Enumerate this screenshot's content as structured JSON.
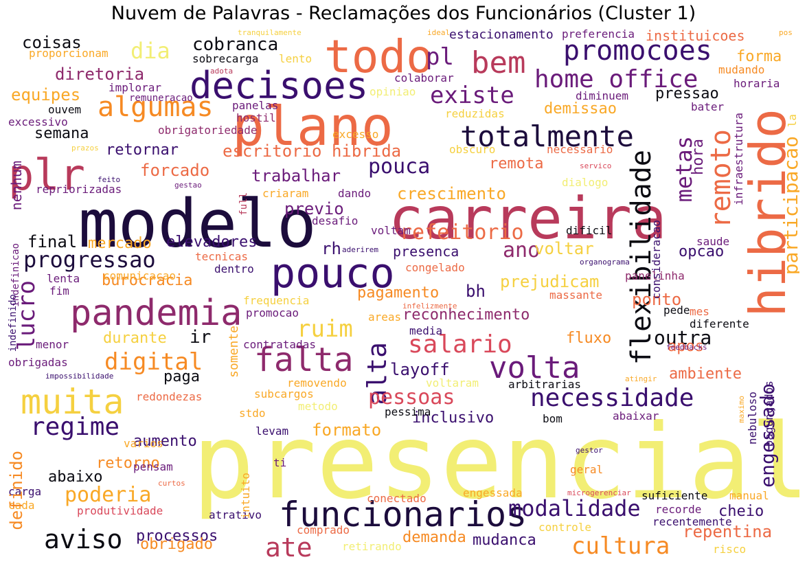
{
  "title": "Nuvem de Palavras - Reclamações dos Funcionários (Cluster 1)",
  "palette": {
    "dark": "#1c0c3c",
    "indigo": "#3a0f6e",
    "purple": "#6a1b7a",
    "plum": "#8e2a6c",
    "rose": "#b83a5b",
    "red": "#d9485a",
    "coral": "#ec6a45",
    "orange": "#f68a23",
    "amber": "#f9a826",
    "gold": "#f5d040",
    "yellow": "#f2ee74",
    "black": "#0b0b12"
  },
  "words": [
    {
      "t": "presencial",
      "c": "yellow"
    },
    {
      "t": "modelo",
      "c": "dark"
    },
    {
      "t": "carreira",
      "c": "rose"
    },
    {
      "t": "plano",
      "c": "coral"
    },
    {
      "t": "hibrido",
      "c": "coral"
    },
    {
      "t": "todo",
      "c": "coral"
    },
    {
      "t": "plr",
      "c": "rose"
    },
    {
      "t": "pouco",
      "c": "indigo"
    },
    {
      "t": "decisoes",
      "c": "indigo"
    },
    {
      "t": "pandemia",
      "c": "plum"
    },
    {
      "t": "funcionarios",
      "c": "dark"
    },
    {
      "t": "muita",
      "c": "gold"
    },
    {
      "t": "totalmente",
      "c": "dark"
    },
    {
      "t": "flexibilidade",
      "c": "black"
    },
    {
      "t": "bem",
      "c": "rose"
    },
    {
      "t": "promocoes",
      "c": "indigo"
    },
    {
      "t": "home office",
      "c": "purple"
    },
    {
      "t": "necessidade",
      "c": "indigo"
    },
    {
      "t": "falta",
      "c": "plum"
    },
    {
      "t": "volta",
      "c": "purple"
    },
    {
      "t": "algumas",
      "c": "orange"
    },
    {
      "t": "existe",
      "c": "purple"
    },
    {
      "t": "salario",
      "c": "red"
    },
    {
      "t": "cultura",
      "c": "orange"
    },
    {
      "t": "regime",
      "c": "indigo"
    },
    {
      "t": "aviso",
      "c": "black"
    },
    {
      "t": "modalidade",
      "c": "indigo"
    },
    {
      "t": "remoto",
      "c": "coral"
    },
    {
      "t": "progressao",
      "c": "dark"
    },
    {
      "t": "ate",
      "c": "rose"
    },
    {
      "t": "ruim",
      "c": "gold"
    },
    {
      "t": "digital",
      "c": "orange"
    },
    {
      "t": "alta",
      "c": "indigo"
    },
    {
      "t": "lucro",
      "c": "purple"
    },
    {
      "t": "pl",
      "c": "purple"
    },
    {
      "t": "metas",
      "c": "purple"
    },
    {
      "t": "participacao",
      "c": "amber"
    },
    {
      "t": "poderia",
      "c": "amber"
    },
    {
      "t": "outra",
      "c": "black"
    },
    {
      "t": "pessoas",
      "c": "red"
    },
    {
      "t": "refeitorio",
      "c": "coral"
    },
    {
      "t": "pouca",
      "c": "indigo"
    },
    {
      "t": "ano",
      "c": "plum"
    },
    {
      "t": "engessado",
      "c": "indigo"
    },
    {
      "t": "cobranca",
      "c": "black"
    },
    {
      "t": "coisas",
      "c": "black"
    },
    {
      "t": "dia",
      "c": "yellow"
    },
    {
      "t": "diretoria",
      "c": "plum"
    },
    {
      "t": "equipes",
      "c": "amber"
    },
    {
      "t": "semana",
      "c": "black"
    },
    {
      "t": "retornar",
      "c": "indigo"
    },
    {
      "t": "escritorio hibrida",
      "c": "coral"
    },
    {
      "t": "trabalhar",
      "c": "purple"
    },
    {
      "t": "forcado",
      "c": "coral"
    },
    {
      "t": "crescimento",
      "c": "amber"
    },
    {
      "t": "remota",
      "c": "coral"
    },
    {
      "t": "hora",
      "c": "purple"
    },
    {
      "t": "final",
      "c": "black"
    },
    {
      "t": "mercado",
      "c": "amber"
    },
    {
      "t": "elevadores",
      "c": "indigo"
    },
    {
      "t": "previo",
      "c": "purple"
    },
    {
      "t": "rh",
      "c": "indigo"
    },
    {
      "t": "presenca",
      "c": "indigo"
    },
    {
      "t": "voltar",
      "c": "gold"
    },
    {
      "t": "opcao",
      "c": "indigo"
    },
    {
      "t": "burocracia",
      "c": "orange"
    },
    {
      "t": "prejudicam",
      "c": "gold"
    },
    {
      "t": "pagamento",
      "c": "orange"
    },
    {
      "t": "bh",
      "c": "indigo"
    },
    {
      "t": "ponto",
      "c": "coral"
    },
    {
      "t": "reconhecimento",
      "c": "plum"
    },
    {
      "t": "ir",
      "c": "black"
    },
    {
      "t": "durante",
      "c": "gold"
    },
    {
      "t": "fluxo",
      "c": "orange"
    },
    {
      "t": "apos",
      "c": "coral"
    },
    {
      "t": "layoff",
      "c": "indigo"
    },
    {
      "t": "paga",
      "c": "black"
    },
    {
      "t": "ambiente",
      "c": "coral"
    },
    {
      "t": "formato",
      "c": "amber"
    },
    {
      "t": "aumento",
      "c": "indigo"
    },
    {
      "t": "inclusivo",
      "c": "indigo"
    },
    {
      "t": "retorno",
      "c": "orange"
    },
    {
      "t": "abaixo",
      "c": "black"
    },
    {
      "t": "processos",
      "c": "indigo"
    },
    {
      "t": "obrigado",
      "c": "orange"
    },
    {
      "t": "demanda",
      "c": "orange"
    },
    {
      "t": "mudanca",
      "c": "indigo"
    },
    {
      "t": "repentina",
      "c": "coral"
    },
    {
      "t": "cheio",
      "c": "indigo"
    },
    {
      "t": "demissao",
      "c": "amber"
    },
    {
      "t": "pressao",
      "c": "black"
    },
    {
      "t": "forma",
      "c": "amber"
    },
    {
      "t": "instituicoes",
      "c": "coral"
    },
    {
      "t": "estacionamento",
      "c": "indigo"
    },
    {
      "t": "preferencia",
      "c": "purple"
    },
    {
      "t": "sobrecarga",
      "c": "black"
    },
    {
      "t": "lento",
      "c": "gold"
    },
    {
      "t": "proporcionam",
      "c": "amber"
    },
    {
      "t": "implorar",
      "c": "purple"
    },
    {
      "t": "colaborar",
      "c": "purple"
    },
    {
      "t": "opiniao",
      "c": "yellow"
    },
    {
      "t": "remuneracao",
      "c": "purple"
    },
    {
      "t": "panelas",
      "c": "purple"
    },
    {
      "t": "hostil",
      "c": "plum"
    },
    {
      "t": "ouvem",
      "c": "black"
    },
    {
      "t": "excessivo",
      "c": "purple"
    },
    {
      "t": "obrigatoriedade",
      "c": "plum"
    },
    {
      "t": "excesso",
      "c": "amber"
    },
    {
      "t": "reduzidas",
      "c": "gold"
    },
    {
      "t": "mudando",
      "c": "orange"
    },
    {
      "t": "horaria",
      "c": "purple"
    },
    {
      "t": "diminuem",
      "c": "purple"
    },
    {
      "t": "bater",
      "c": "purple"
    },
    {
      "t": "obscuro",
      "c": "gold"
    },
    {
      "t": "necessario",
      "c": "coral"
    },
    {
      "t": "dialogo",
      "c": "yellow"
    },
    {
      "t": "nenhum",
      "c": "purple"
    },
    {
      "t": "repriorizadas",
      "c": "purple"
    },
    {
      "t": "full",
      "c": "rose"
    },
    {
      "t": "criaram",
      "c": "amber"
    },
    {
      "t": "dando",
      "c": "purple"
    },
    {
      "t": "desafio",
      "c": "purple"
    },
    {
      "t": "voltam",
      "c": "purple"
    },
    {
      "t": "dificil",
      "c": "black"
    },
    {
      "t": "saude",
      "c": "purple"
    },
    {
      "t": "tecnicas",
      "c": "coral"
    },
    {
      "t": "dentro",
      "c": "indigo"
    },
    {
      "t": "comunicacao",
      "c": "amber"
    },
    {
      "t": "congelado",
      "c": "coral"
    },
    {
      "t": "massante",
      "c": "coral"
    },
    {
      "t": "panelinha",
      "c": "plum"
    },
    {
      "t": "lenta",
      "c": "purple"
    },
    {
      "t": "fim",
      "c": "purple"
    },
    {
      "t": "frequencia",
      "c": "gold"
    },
    {
      "t": "promocao",
      "c": "purple"
    },
    {
      "t": "areas",
      "c": "amber"
    },
    {
      "t": "media",
      "c": "indigo"
    },
    {
      "t": "pede",
      "c": "black"
    },
    {
      "t": "mes",
      "c": "coral"
    },
    {
      "t": "diferente",
      "c": "black"
    },
    {
      "t": "menor",
      "c": "purple"
    },
    {
      "t": "obrigadas",
      "c": "purple"
    },
    {
      "t": "contratadas",
      "c": "purple"
    },
    {
      "t": "removendo",
      "c": "amber"
    },
    {
      "t": "voltaram",
      "c": "yellow"
    },
    {
      "t": "arbitrarias",
      "c": "black"
    },
    {
      "t": "subcargos",
      "c": "amber"
    },
    {
      "t": "redondezas",
      "c": "coral"
    },
    {
      "t": "stdo",
      "c": "amber"
    },
    {
      "t": "levam",
      "c": "indigo"
    },
    {
      "t": "pessima",
      "c": "black"
    },
    {
      "t": "bom",
      "c": "black"
    },
    {
      "t": "abaixar",
      "c": "purple"
    },
    {
      "t": "metodo",
      "c": "yellow"
    },
    {
      "t": "varios",
      "c": "amber"
    },
    {
      "t": "pensam",
      "c": "purple"
    },
    {
      "t": "ti",
      "c": "purple"
    },
    {
      "t": "geral",
      "c": "orange"
    },
    {
      "t": "carga",
      "c": "indigo"
    },
    {
      "t": "cada",
      "c": "amber"
    },
    {
      "t": "produtividade",
      "c": "red"
    },
    {
      "t": "atrativo",
      "c": "indigo"
    },
    {
      "t": "conectado",
      "c": "coral"
    },
    {
      "t": "engessada",
      "c": "amber"
    },
    {
      "t": "suficiente",
      "c": "black"
    },
    {
      "t": "manual",
      "c": "amber"
    },
    {
      "t": "recorde",
      "c": "purple"
    },
    {
      "t": "recentemente",
      "c": "indigo"
    },
    {
      "t": "controle",
      "c": "gold"
    },
    {
      "t": "comprado",
      "c": "coral"
    },
    {
      "t": "retirando",
      "c": "yellow"
    },
    {
      "t": "risco",
      "c": "gold"
    },
    {
      "t": "definido",
      "c": "orange"
    },
    {
      "t": "somente",
      "c": "amber"
    },
    {
      "t": "intuito",
      "c": "amber"
    },
    {
      "t": "indefinicao",
      "c": "purple"
    },
    {
      "t": "indefinido",
      "c": "indigo"
    },
    {
      "t": "consideracao",
      "c": "indigo"
    },
    {
      "t": "infraestrutura",
      "c": "purple"
    },
    {
      "t": "nebuloso",
      "c": "indigo"
    },
    {
      "t": "bagunçados",
      "c": "indigo"
    },
    {
      "t": "tranquilamente",
      "c": "gold"
    },
    {
      "t": "ideal",
      "c": "amber"
    },
    {
      "t": "pos",
      "c": "amber"
    },
    {
      "t": "adota",
      "c": "rose"
    },
    {
      "t": "prazos",
      "c": "gold"
    },
    {
      "t": "feito",
      "c": "indigo"
    },
    {
      "t": "gestao",
      "c": "purple"
    },
    {
      "t": "servico",
      "c": "red"
    },
    {
      "t": "aderirem",
      "c": "indigo"
    },
    {
      "t": "organograma",
      "c": "indigo"
    },
    {
      "t": "infelizmente",
      "c": "coral"
    },
    {
      "t": "feedbacks",
      "c": "purple"
    },
    {
      "t": "impossibilidade",
      "c": "indigo"
    },
    {
      "t": "atingir",
      "c": "amber"
    },
    {
      "t": "maximo",
      "c": "amber"
    },
    {
      "t": "gestor",
      "c": "indigo"
    },
    {
      "t": "microgerenciar",
      "c": "red"
    },
    {
      "t": "curtos",
      "c": "coral"
    },
    {
      "t": "la",
      "c": "gold"
    }
  ]
}
